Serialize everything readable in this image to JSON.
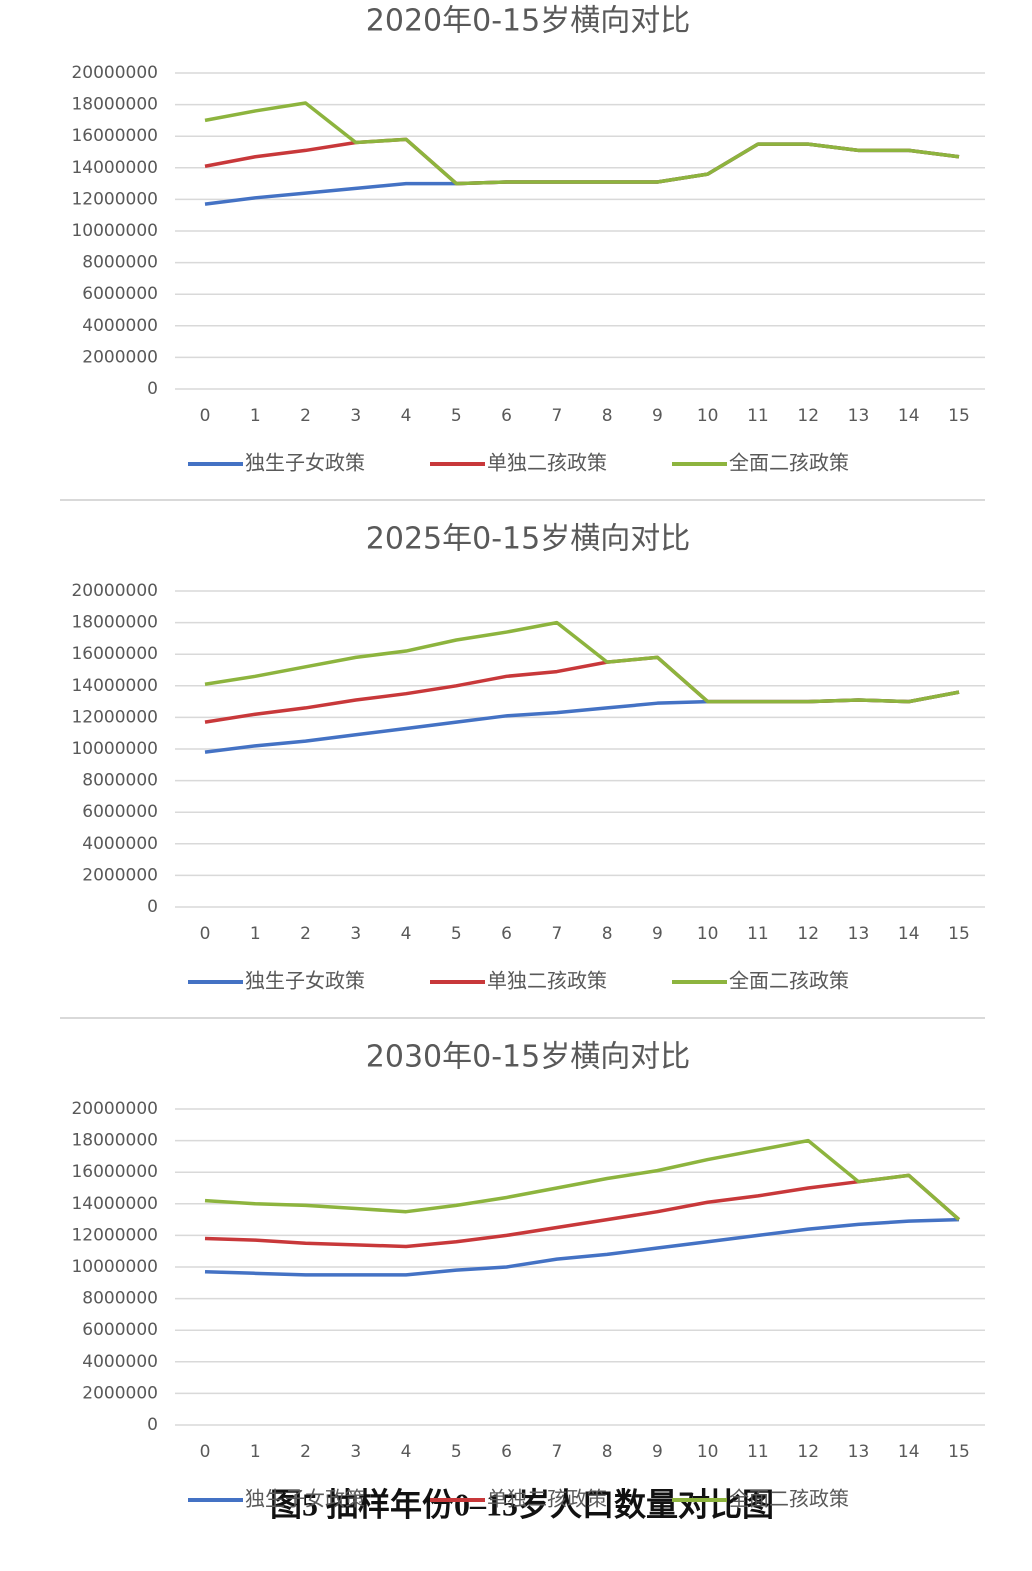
{
  "chart_data": [
    {
      "type": "line",
      "title": "2020年0-15岁横向对比",
      "categories": [
        "0",
        "1",
        "2",
        "3",
        "4",
        "5",
        "6",
        "7",
        "8",
        "9",
        "10",
        "11",
        "12",
        "13",
        "14",
        "15"
      ],
      "series": [
        {
          "name": "独生子女政策",
          "color": "#4472c4",
          "values": [
            11700000,
            12100000,
            12400000,
            12700000,
            13000000,
            13000000,
            13100000,
            13100000,
            13100000,
            13100000,
            13600000,
            15500000,
            15500000,
            15100000,
            15100000,
            14700000
          ]
        },
        {
          "name": "单独二孩政策",
          "color": "#c8383a",
          "values": [
            14100000,
            14700000,
            15100000,
            15600000,
            15800000,
            13000000,
            13100000,
            13100000,
            13100000,
            13100000,
            13600000,
            15500000,
            15500000,
            15100000,
            15100000,
            14700000
          ]
        },
        {
          "name": "全面二孩政策",
          "color": "#8db43e",
          "values": [
            17000000,
            17600000,
            18100000,
            15600000,
            15800000,
            13000000,
            13100000,
            13100000,
            13100000,
            13100000,
            13600000,
            15500000,
            15500000,
            15100000,
            15100000,
            14700000
          ]
        }
      ],
      "ylim": [
        0,
        20000000
      ],
      "yticks": [
        0,
        2000000,
        4000000,
        6000000,
        8000000,
        10000000,
        12000000,
        14000000,
        16000000,
        18000000,
        20000000
      ],
      "grid": true,
      "legend": "bottom"
    },
    {
      "type": "line",
      "title": "2025年0-15岁横向对比",
      "categories": [
        "0",
        "1",
        "2",
        "3",
        "4",
        "5",
        "6",
        "7",
        "8",
        "9",
        "10",
        "11",
        "12",
        "13",
        "14",
        "15"
      ],
      "series": [
        {
          "name": "独生子女政策",
          "color": "#4472c4",
          "values": [
            9800000,
            10200000,
            10500000,
            10900000,
            11300000,
            11700000,
            12100000,
            12300000,
            12600000,
            12900000,
            13000000,
            13000000,
            13000000,
            13100000,
            13000000,
            13600000
          ]
        },
        {
          "name": "单独二孩政策",
          "color": "#c8383a",
          "values": [
            11700000,
            12200000,
            12600000,
            13100000,
            13500000,
            14000000,
            14600000,
            14900000,
            15500000,
            15800000,
            13000000,
            13000000,
            13000000,
            13100000,
            13000000,
            13600000
          ]
        },
        {
          "name": "全面二孩政策",
          "color": "#8db43e",
          "values": [
            14100000,
            14600000,
            15200000,
            15800000,
            16200000,
            16900000,
            17400000,
            18000000,
            15500000,
            15800000,
            13000000,
            13000000,
            13000000,
            13100000,
            13000000,
            13600000
          ]
        }
      ],
      "ylim": [
        0,
        20000000
      ],
      "yticks": [
        0,
        2000000,
        4000000,
        6000000,
        8000000,
        10000000,
        12000000,
        14000000,
        16000000,
        18000000,
        20000000
      ],
      "grid": true,
      "legend": "bottom"
    },
    {
      "type": "line",
      "title": "2030年0-15岁横向对比",
      "categories": [
        "0",
        "1",
        "2",
        "3",
        "4",
        "5",
        "6",
        "7",
        "8",
        "9",
        "10",
        "11",
        "12",
        "13",
        "14",
        "15"
      ],
      "series": [
        {
          "name": "独生子女政策",
          "color": "#4472c4",
          "values": [
            9700000,
            9600000,
            9500000,
            9500000,
            9500000,
            9800000,
            10000000,
            10500000,
            10800000,
            11200000,
            11600000,
            12000000,
            12400000,
            12700000,
            12900000,
            13000000
          ]
        },
        {
          "name": "单独二孩政策",
          "color": "#c8383a",
          "values": [
            11800000,
            11700000,
            11500000,
            11400000,
            11300000,
            11600000,
            12000000,
            12500000,
            13000000,
            13500000,
            14100000,
            14500000,
            15000000,
            15400000,
            15800000,
            13000000
          ]
        },
        {
          "name": "全面二孩政策",
          "color": "#8db43e",
          "values": [
            14200000,
            14000000,
            13900000,
            13700000,
            13500000,
            13900000,
            14400000,
            15000000,
            15600000,
            16100000,
            16800000,
            17400000,
            18000000,
            15400000,
            15800000,
            13000000
          ]
        }
      ],
      "ylim": [
        0,
        20000000
      ],
      "yticks": [
        0,
        2000000,
        4000000,
        6000000,
        8000000,
        10000000,
        12000000,
        14000000,
        16000000,
        18000000,
        20000000
      ],
      "grid": true,
      "legend": "bottom"
    }
  ],
  "caption": "图5  抽样年份0–15岁人口数量对比图"
}
